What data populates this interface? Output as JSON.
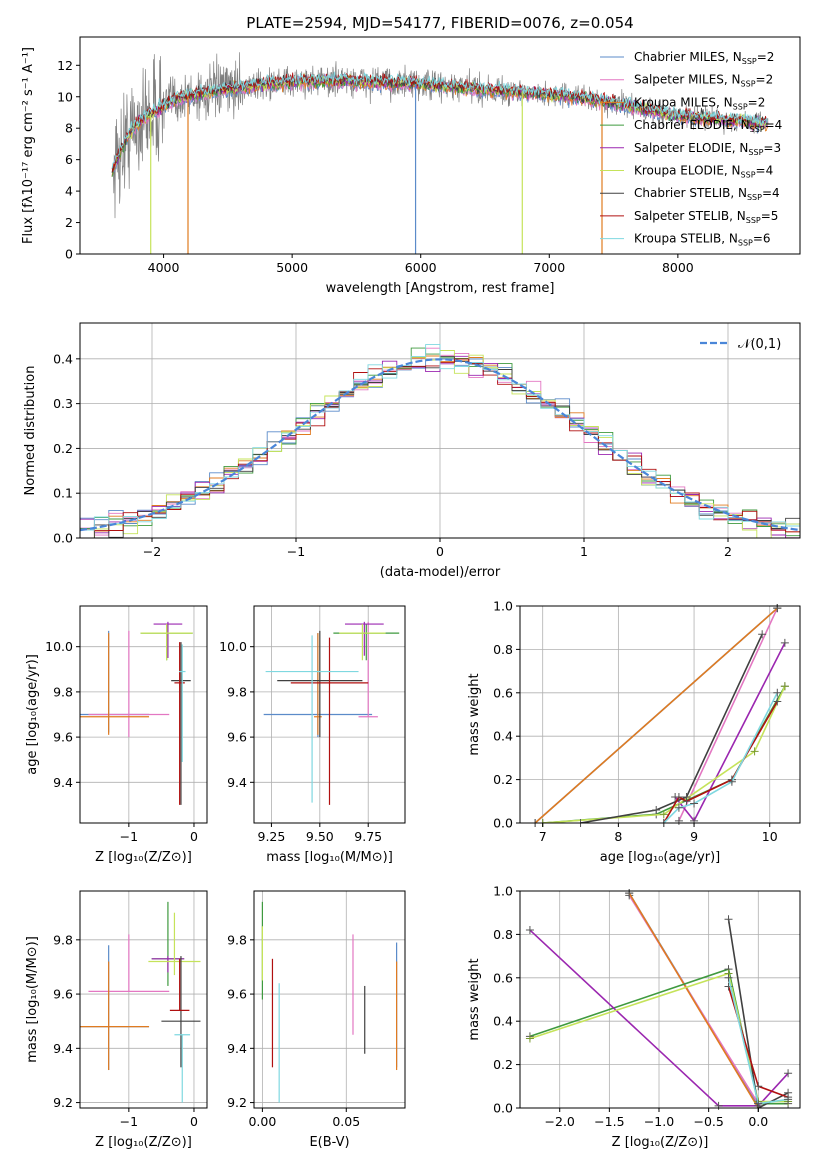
{
  "chart_data": [
    {
      "type": "line",
      "title": "PLATE=2594, MJD=54177, FIBERID=0076, z=0.054",
      "xlabel": "wavelength [Angstrom, rest frame]",
      "ylabel": "Flux [fλ10⁻¹⁷ erg cm⁻² s⁻¹ A⁻¹]",
      "xlim": [
        3350,
        8950
      ],
      "ylim": [
        0,
        13.8
      ],
      "xticks": [
        4000,
        5000,
        6000,
        7000,
        8000
      ],
      "yticks": [
        0,
        2,
        4,
        6,
        8,
        10,
        12
      ],
      "grid": false,
      "legend_placement": "upper-right",
      "series": [
        {
          "name": "Chabrier MILES, N",
          "sub": "SSP",
          "suffix": "=2",
          "color": "#5b8bc9"
        },
        {
          "name": "Salpeter MILES, N",
          "sub": "SSP",
          "suffix": "=2",
          "color": "#e377c2"
        },
        {
          "name": "Kroupa MILES, N",
          "sub": "SSP",
          "suffix": "=2",
          "color": "#e07b20"
        },
        {
          "name": "Chabrier ELODIE, N",
          "sub": "SSP",
          "suffix": "=4",
          "color": "#3f9a3f"
        },
        {
          "name": "Salpeter ELODIE, N",
          "sub": "SSP",
          "suffix": "=3",
          "color": "#9b27b0"
        },
        {
          "name": "Kroupa ELODIE, N",
          "sub": "SSP",
          "suffix": "=4",
          "color": "#c5e35a"
        },
        {
          "name": "Chabrier STELIB, N",
          "sub": "SSP",
          "suffix": "=4",
          "color": "#404040"
        },
        {
          "name": "Salpeter STELIB, N",
          "sub": "SSP",
          "suffix": "=5",
          "color": "#b01010"
        },
        {
          "name": "Kroupa STELIB, N",
          "sub": "SSP",
          "suffix": "=6",
          "color": "#7fd8e0"
        }
      ],
      "data_color": "#808080",
      "continuum": [
        [
          3600,
          5.3
        ],
        [
          3700,
          7.2
        ],
        [
          3800,
          8.3
        ],
        [
          3900,
          8.9
        ],
        [
          4000,
          9.4
        ],
        [
          4100,
          9.9
        ],
        [
          4300,
          10.2
        ],
        [
          4500,
          10.5
        ],
        [
          4800,
          10.8
        ],
        [
          5100,
          11.0
        ],
        [
          5400,
          11.0
        ],
        [
          5700,
          10.9
        ],
        [
          6000,
          10.8
        ],
        [
          6300,
          10.6
        ],
        [
          6600,
          10.4
        ],
        [
          6900,
          10.2
        ],
        [
          7200,
          10.0
        ],
        [
          7500,
          9.6
        ],
        [
          7800,
          9.1
        ],
        [
          8100,
          8.7
        ],
        [
          8400,
          8.5
        ],
        [
          8700,
          8.3
        ]
      ],
      "dropouts": [
        [
          3900,
          3930,
          "#c5e35a"
        ],
        [
          4190,
          4200,
          "#e07b20"
        ],
        [
          5960,
          5970,
          "#5b8bc9"
        ],
        [
          6790,
          6800,
          "#c5e35a"
        ],
        [
          7410,
          7420,
          "#e07b20"
        ]
      ]
    },
    {
      "type": "line",
      "xlabel": "(data-model)/error",
      "ylabel": "Normed distribution",
      "xlim": [
        -2.5,
        2.5
      ],
      "ylim": [
        0,
        0.48
      ],
      "xticks": [
        -2,
        -1,
        0,
        1,
        2
      ],
      "yticks": [
        0.0,
        0.1,
        0.2,
        0.3,
        0.4
      ],
      "grid": true,
      "legend_placement": "upper-right",
      "gaussian": {
        "label": "𝒩(0,1)",
        "mean": 0,
        "sigma": 1,
        "color": "#4a86d8"
      },
      "hist_bin_width": 0.1
    },
    {
      "type": "scatter",
      "xlabel": "Z [log₁₀(Z/Z⊙)]",
      "ylabel": "age  [log₁₀(age/yr)]",
      "xlim": [
        -1.75,
        0.2
      ],
      "ylim": [
        9.22,
        10.18
      ],
      "xticks": [
        -1,
        0
      ],
      "yticks": [
        9.4,
        9.6,
        9.8,
        10.0
      ],
      "grid": true,
      "crosses": [
        {
          "x": -1.31,
          "y": 9.7,
          "xerr": 0.62,
          "yerr": [
            0.08,
            0.37
          ],
          "color": "#5b8bc9"
        },
        {
          "x": -1.0,
          "y": 9.7,
          "xerr": 0.62,
          "yerr": [
            0.1,
            0.37
          ],
          "color": "#e377c2"
        },
        {
          "x": -1.31,
          "y": 9.69,
          "xerr": 0.62,
          "yerr": [
            0.08,
            0.37
          ],
          "color": "#e07b20"
        },
        {
          "x": -0.42,
          "y": 10.06,
          "xerr": 0.4,
          "yerr": [
            0.12,
            0.04
          ],
          "color": "#3f9a3f"
        },
        {
          "x": -0.4,
          "y": 10.1,
          "xerr": 0.22,
          "yerr": [
            0.15,
            0.01
          ],
          "color": "#9b27b0"
        },
        {
          "x": -0.42,
          "y": 10.06,
          "xerr": 0.4,
          "yerr": [
            0.12,
            0.04
          ],
          "color": "#c5e35a"
        },
        {
          "x": -0.2,
          "y": 9.85,
          "xerr": 0.15,
          "yerr": [
            0.55,
            0.17
          ],
          "color": "#404040"
        },
        {
          "x": -0.22,
          "y": 9.84,
          "xerr": 0.08,
          "yerr": [
            0.54,
            0.18
          ],
          "color": "#b01010"
        },
        {
          "x": -0.18,
          "y": 9.89,
          "xerr": 0.05,
          "yerr": [
            0.4,
            0.12
          ],
          "color": "#7fd8e0"
        }
      ]
    },
    {
      "type": "scatter",
      "xlabel": "mass [log₁₀(M/M⊙)]",
      "ylabel": "",
      "xlim": [
        9.16,
        9.94
      ],
      "ylim": [
        9.22,
        10.18
      ],
      "xticks": [
        9.25,
        9.5,
        9.75
      ],
      "yticks": [
        9.4,
        9.6,
        9.8,
        10.0
      ],
      "grid": true,
      "crosses": [
        {
          "x": 9.49,
          "y": 9.7,
          "xerr": 0.28,
          "yerr": [
            0.1,
            0.36
          ],
          "color": "#5b8bc9"
        },
        {
          "x": 9.75,
          "y": 9.69,
          "xerr": 0.05,
          "yerr": [
            0.0,
            0.42
          ],
          "color": "#e377c2"
        },
        {
          "x": 9.49,
          "y": 9.69,
          "xerr": 0.02,
          "yerr": [
            0.08,
            0.37
          ],
          "color": "#e07b20"
        },
        {
          "x": 9.74,
          "y": 10.06,
          "xerr": 0.17,
          "yerr": [
            0.12,
            0.04
          ],
          "color": "#3f9a3f"
        },
        {
          "x": 9.73,
          "y": 10.1,
          "xerr": 0.1,
          "yerr": [
            0.14,
            0.01
          ],
          "color": "#9b27b0"
        },
        {
          "x": 9.72,
          "y": 10.06,
          "xerr": 0.12,
          "yerr": [
            0.12,
            0.04
          ],
          "color": "#c5e35a"
        },
        {
          "x": 9.5,
          "y": 9.85,
          "xerr": 0.22,
          "yerr": [
            0.25,
            0.22
          ],
          "color": "#404040"
        },
        {
          "x": 9.55,
          "y": 9.84,
          "xerr": 0.2,
          "yerr": [
            0.54,
            0.2
          ],
          "color": "#b01010"
        },
        {
          "x": 9.46,
          "y": 9.89,
          "xerr": 0.24,
          "yerr": [
            0.58,
            0.16
          ],
          "color": "#7fd8e0"
        }
      ]
    },
    {
      "type": "line",
      "xlabel": "age  [log₁₀(age/yr)]",
      "ylabel": "mass weight",
      "xlim": [
        6.7,
        10.4
      ],
      "ylim": [
        0,
        1.0
      ],
      "xticks": [
        7,
        8,
        9,
        10
      ],
      "yticks": [
        0.0,
        0.2,
        0.4,
        0.6,
        0.8,
        1.0
      ],
      "grid": true,
      "marker": "+",
      "series": [
        {
          "color": "#5b8bc9",
          "points": [
            [
              6.9,
              0.0
            ],
            [
              10.1,
              0.99
            ]
          ]
        },
        {
          "color": "#e377c2",
          "points": [
            [
              8.8,
              0.01
            ],
            [
              10.1,
              0.99
            ]
          ]
        },
        {
          "color": "#e07b20",
          "points": [
            [
              6.9,
              0.0
            ],
            [
              10.1,
              0.99
            ]
          ]
        },
        {
          "color": "#3f9a3f",
          "points": [
            [
              7.0,
              0.0
            ],
            [
              8.5,
              0.04
            ],
            [
              9.5,
              0.2
            ],
            [
              10.2,
              0.63
            ]
          ]
        },
        {
          "color": "#9b27b0",
          "points": [
            [
              8.75,
              0.12
            ],
            [
              9.0,
              0.01
            ],
            [
              10.2,
              0.83
            ]
          ]
        },
        {
          "color": "#c5e35a",
          "points": [
            [
              7.0,
              0.0
            ],
            [
              8.6,
              0.04
            ],
            [
              9.8,
              0.33
            ],
            [
              10.2,
              0.63
            ]
          ]
        },
        {
          "color": "#404040",
          "points": [
            [
              7.5,
              0.0
            ],
            [
              8.5,
              0.06
            ],
            [
              8.9,
              0.12
            ],
            [
              9.9,
              0.87
            ]
          ]
        },
        {
          "color": "#b01010",
          "points": [
            [
              8.6,
              0.0
            ],
            [
              8.8,
              0.12
            ],
            [
              8.9,
              0.1
            ],
            [
              9.5,
              0.2
            ],
            [
              10.1,
              0.56
            ]
          ]
        },
        {
          "color": "#7fd8e0",
          "points": [
            [
              8.6,
              0.0
            ],
            [
              8.8,
              0.07
            ],
            [
              9.0,
              0.09
            ],
            [
              9.5,
              0.19
            ],
            [
              10.1,
              0.6
            ]
          ]
        }
      ]
    },
    {
      "type": "scatter",
      "xlabel": "Z [log₁₀(Z/Z⊙)]",
      "ylabel": "mass [log₁₀(M/M⊙)]",
      "xlim": [
        -1.75,
        0.2
      ],
      "ylim": [
        9.18,
        9.98
      ],
      "xticks": [
        -1,
        0
      ],
      "yticks": [
        9.2,
        9.4,
        9.6,
        9.8
      ],
      "grid": true,
      "crosses": [
        {
          "x": -1.31,
          "y": 9.48,
          "xerr": 0.62,
          "yerr": [
            0.16,
            0.3
          ],
          "color": "#5b8bc9"
        },
        {
          "x": -1.0,
          "y": 9.61,
          "xerr": 0.62,
          "yerr": [
            0.0,
            0.21
          ],
          "color": "#e377c2"
        },
        {
          "x": -1.31,
          "y": 9.48,
          "xerr": 0.62,
          "yerr": [
            0.16,
            0.24
          ],
          "color": "#e07b20"
        },
        {
          "x": -0.4,
          "y": 9.73,
          "xerr": 0.25,
          "yerr": [
            0.1,
            0.21
          ],
          "color": "#3f9a3f"
        },
        {
          "x": -0.4,
          "y": 9.73,
          "xerr": 0.25,
          "yerr": [
            0.05,
            0.01
          ],
          "color": "#9b27b0"
        },
        {
          "x": -0.3,
          "y": 9.72,
          "xerr": 0.4,
          "yerr": [
            0.05,
            0.18
          ],
          "color": "#c5e35a"
        },
        {
          "x": -0.2,
          "y": 9.5,
          "xerr": 0.3,
          "yerr": [
            0.17,
            0.24
          ],
          "color": "#404040"
        },
        {
          "x": -0.22,
          "y": 9.54,
          "xerr": 0.15,
          "yerr": [
            0.0,
            0.19
          ],
          "color": "#b01010"
        },
        {
          "x": -0.18,
          "y": 9.45,
          "xerr": 0.12,
          "yerr": [
            0.25,
            0.0
          ],
          "color": "#7fd8e0"
        }
      ]
    },
    {
      "type": "scatter",
      "xlabel": "E(B-V)",
      "ylabel": "",
      "xlim": [
        -0.005,
        0.085
      ],
      "ylim": [
        9.18,
        9.98
      ],
      "xticks": [
        0.0,
        0.05
      ],
      "yticks": [
        9.2,
        9.4,
        9.6,
        9.8
      ],
      "grid": true,
      "crosses": [
        {
          "x": 0.0,
          "y": 9.8,
          "xerr": 0,
          "yerr": [
            0.22,
            0.14
          ],
          "color": "#3f9a3f"
        },
        {
          "x": 0.0,
          "y": 9.75,
          "xerr": 0,
          "yerr": [
            0.1,
            0.1
          ],
          "color": "#c5e35a"
        },
        {
          "x": 0.006,
          "y": 9.53,
          "xerr": 0,
          "yerr": [
            0.2,
            0.2
          ],
          "color": "#b01010"
        },
        {
          "x": 0.01,
          "y": 9.42,
          "xerr": 0,
          "yerr": [
            0.22,
            0.22
          ],
          "color": "#7fd8e0"
        },
        {
          "x": 0.054,
          "y": 9.63,
          "xerr": 0,
          "yerr": [
            0.18,
            0.19
          ],
          "color": "#e377c2"
        },
        {
          "x": 0.061,
          "y": 9.5,
          "xerr": 0,
          "yerr": [
            0.12,
            0.13
          ],
          "color": "#404040"
        },
        {
          "x": 0.08,
          "y": 9.55,
          "xerr": 0,
          "yerr": [
            0.22,
            0.24
          ],
          "color": "#5b8bc9"
        },
        {
          "x": 0.08,
          "y": 9.52,
          "xerr": 0,
          "yerr": [
            0.2,
            0.2
          ],
          "color": "#e07b20"
        }
      ]
    },
    {
      "type": "line",
      "xlabel": "Z [log₁₀(Z/Z⊙)]",
      "ylabel": "mass weight",
      "xlim": [
        -2.4,
        0.42
      ],
      "ylim": [
        0,
        1.0
      ],
      "xticks": [
        -2.0,
        -1.5,
        -1.0,
        -0.5,
        0.0
      ],
      "yticks": [
        0.0,
        0.2,
        0.4,
        0.6,
        0.8,
        1.0
      ],
      "grid": true,
      "marker": "+",
      "series": [
        {
          "color": "#5b8bc9",
          "points": [
            [
              -1.3,
              0.99
            ],
            [
              0.0,
              0.01
            ]
          ]
        },
        {
          "color": "#e377c2",
          "points": [
            [
              -1.3,
              0.98
            ],
            [
              0.0,
              0.02
            ]
          ]
        },
        {
          "color": "#e07b20",
          "points": [
            [
              -1.3,
              0.99
            ],
            [
              0.0,
              0.0
            ]
          ]
        },
        {
          "color": "#3f9a3f",
          "points": [
            [
              -2.3,
              0.33
            ],
            [
              -0.3,
              0.64
            ],
            [
              0.0,
              0.02
            ],
            [
              0.3,
              0.02
            ]
          ]
        },
        {
          "color": "#9b27b0",
          "points": [
            [
              -2.3,
              0.82
            ],
            [
              -0.4,
              0.01
            ],
            [
              0.0,
              0.01
            ],
            [
              0.3,
              0.16
            ]
          ]
        },
        {
          "color": "#c5e35a",
          "points": [
            [
              -2.3,
              0.32
            ],
            [
              -0.3,
              0.62
            ],
            [
              0.0,
              0.03
            ],
            [
              0.3,
              0.03
            ]
          ]
        },
        {
          "color": "#404040",
          "points": [
            [
              -0.3,
              0.87
            ],
            [
              0.0,
              0.0
            ],
            [
              0.3,
              0.07
            ]
          ]
        },
        {
          "color": "#b01010",
          "points": [
            [
              -0.3,
              0.56
            ],
            [
              0.0,
              0.1
            ],
            [
              0.3,
              0.05
            ]
          ]
        },
        {
          "color": "#7fd8e0",
          "points": [
            [
              -0.3,
              0.6
            ],
            [
              0.0,
              0.02
            ],
            [
              0.3,
              0.04
            ]
          ]
        }
      ]
    }
  ]
}
